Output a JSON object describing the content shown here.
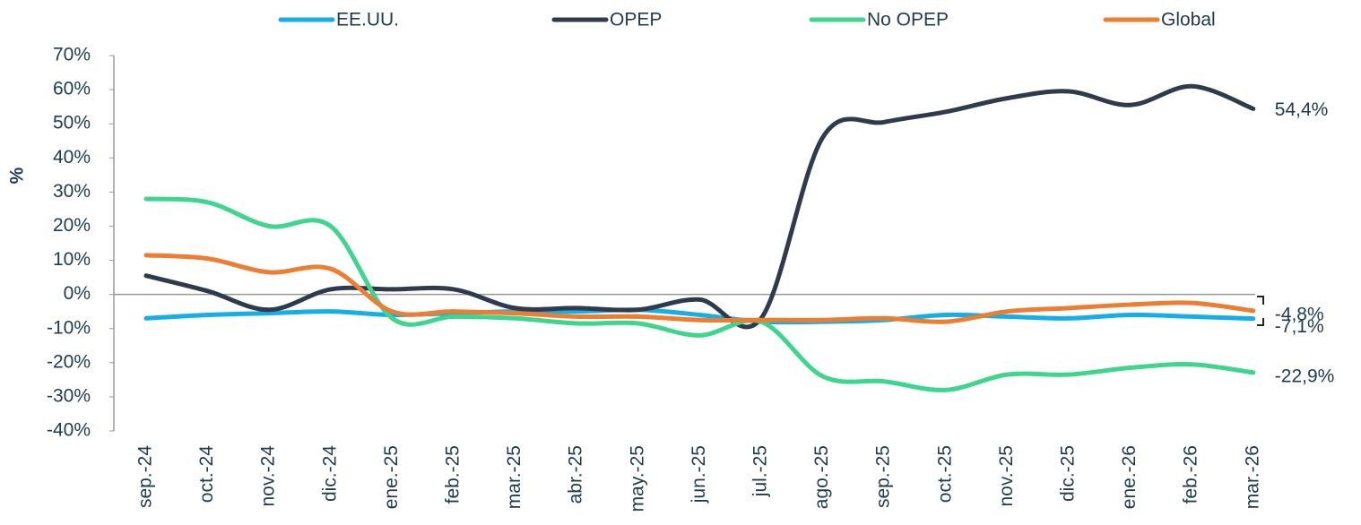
{
  "chart_data": {
    "type": "line",
    "y_label": "%",
    "categories": [
      "sep.-24",
      "oct.-24",
      "nov.-24",
      "dic.-24",
      "ene.-25",
      "feb.-25",
      "mar.-25",
      "abr.-25",
      "may.-25",
      "jun.-25",
      "jul.-25",
      "ago.-25",
      "sep.-25",
      "oct.-25",
      "nov.-25",
      "dic.-25",
      "ene.-26",
      "feb.-26",
      "mar.-26"
    ],
    "series": [
      {
        "name": "EE.UU.",
        "color": "#14aee8",
        "values": [
          -7,
          -6,
          -5.5,
          -5,
          -6,
          -5.5,
          -5,
          -5,
          -4.5,
          -6,
          -8,
          -8,
          -7.5,
          -6,
          -6.5,
          -7,
          -6,
          -6.5,
          -7.1
        ],
        "value_labels": [
          null,
          null,
          null,
          null,
          null,
          null,
          null,
          null,
          null,
          null,
          null,
          null,
          null,
          null,
          null,
          null,
          null,
          null,
          "-7,1%"
        ]
      },
      {
        "name": "OPEP",
        "color": "#2f3b4c",
        "values": [
          5.5,
          1,
          -4.5,
          1.5,
          1.5,
          1.5,
          -4,
          -4,
          -4.5,
          -1.5,
          -7,
          46,
          50.5,
          53.5,
          57.5,
          59.5,
          55.5,
          61,
          54.4
        ],
        "value_labels": [
          null,
          null,
          null,
          null,
          null,
          null,
          null,
          null,
          null,
          null,
          null,
          null,
          null,
          null,
          null,
          null,
          null,
          null,
          "54,4%"
        ]
      },
      {
        "name": "No OPEP",
        "color": "#3ed68e",
        "values": [
          28,
          27,
          20,
          20,
          -7,
          -6.5,
          -7,
          -8.5,
          -8.5,
          -12,
          -8,
          -24,
          -25.5,
          -28,
          -23.5,
          -23.5,
          -21.5,
          -20.5,
          -22.9
        ],
        "value_labels": [
          null,
          null,
          null,
          null,
          null,
          null,
          null,
          null,
          null,
          null,
          null,
          null,
          null,
          null,
          null,
          null,
          null,
          null,
          "-22,9%"
        ]
      },
      {
        "name": "Global",
        "color": "#ed7d31",
        "values": [
          11.5,
          10.5,
          6.5,
          7.5,
          -5,
          -5,
          -5.5,
          -6.5,
          -6.5,
          -7.5,
          -7.5,
          -7.5,
          -7,
          -8,
          -5,
          -4,
          -3,
          -2.5,
          -4.8
        ],
        "value_labels": [
          null,
          null,
          null,
          null,
          null,
          null,
          null,
          null,
          null,
          null,
          null,
          null,
          null,
          null,
          null,
          null,
          null,
          null,
          "-4,8%"
        ]
      }
    ],
    "ylim": [
      -40,
      70
    ],
    "yticks": [
      {
        "value": -40,
        "label": "-40%"
      },
      {
        "value": -30,
        "label": "-30%"
      },
      {
        "value": -20,
        "label": "-20%"
      },
      {
        "value": -10,
        "label": "-10%"
      },
      {
        "value": 0,
        "label": "0%"
      },
      {
        "value": 10,
        "label": "10%"
      },
      {
        "value": 20,
        "label": "20%"
      },
      {
        "value": 30,
        "label": "30%"
      },
      {
        "value": 40,
        "label": "40%"
      },
      {
        "value": 50,
        "label": "50%"
      },
      {
        "value": 60,
        "label": "60%"
      },
      {
        "value": 70,
        "label": "70%"
      }
    ],
    "legend": "top"
  }
}
